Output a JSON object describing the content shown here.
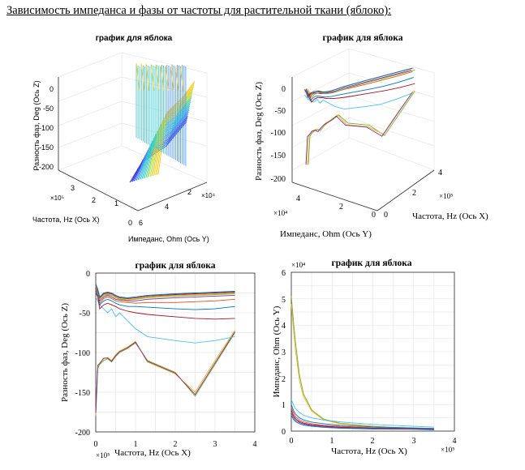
{
  "page": {
    "heading": "Зависимость импеданса и фазы от частоты для растительной ткани (яблоко):"
  },
  "colors": {
    "axis": "#262626",
    "grid": "#e6e6e6"
  },
  "chart_data": [
    {
      "id": "surface3d",
      "type": "surface",
      "title": "график для яблока",
      "xlabel": "Частота, Hz (Ось X)",
      "ylabel": "Импеданс, Ohm (Ось Y)",
      "zlabel": "Разность фаз, Deg (Ось Z)",
      "x_multiplier": "×10⁵",
      "y_multiplier": "×10⁴",
      "x_ticks": [
        "0",
        "1",
        "2",
        "3"
      ],
      "y_ticks": [
        "2",
        "4",
        "6"
      ],
      "z_ticks": [
        "0",
        "-50",
        "-100",
        "-150",
        "-200"
      ],
      "colormap": [
        "#3b3bd9",
        "#3f8ff0",
        "#33c6d6",
        "#56d69b",
        "#c9d636",
        "#f5cf2a"
      ]
    },
    {
      "id": "lines3d",
      "type": "line",
      "title": "график для яблока",
      "xlabel": "Частота, Hz (Ось X)",
      "ylabel": "Импеданс, Ohm (Ось Y)",
      "zlabel": "Разность фаз, Deg (Ось Z)",
      "x_multiplier": "×10⁵",
      "y_multiplier": "×10⁴",
      "x_ticks": [
        "0",
        "2",
        "4"
      ],
      "y_ticks": [
        "4",
        "2",
        "0"
      ],
      "z_ticks": [
        "0",
        "-50",
        "-100",
        "-150",
        "-200"
      ]
    },
    {
      "id": "phase",
      "type": "line",
      "title": "график для яблока",
      "xlabel": "Частота, Hz (Ось X)",
      "ylabel": "Разность фаз, Deg (Ось Z)",
      "x_multiplier": "×10⁵",
      "xlim": [
        0,
        4
      ],
      "ylim": [
        -200,
        0
      ],
      "x_ticks": [
        "0",
        "1",
        "2",
        "3",
        "4"
      ],
      "y_ticks": [
        "0",
        "-50",
        "-100",
        "-150",
        "-200"
      ],
      "x": [
        0,
        0.05,
        0.1,
        0.2,
        0.3,
        0.4,
        0.5,
        0.6,
        0.8,
        1.0,
        1.3,
        2.0,
        2.5,
        3.0,
        3.5
      ],
      "series": [
        {
          "name": "s1",
          "color": "#77ac30",
          "values": [
            -180,
            -120,
            -115,
            -110,
            -108,
            -112,
            -105,
            -100,
            -95,
            -88,
            -110,
            -125,
            -155,
            -115,
            -75
          ]
        },
        {
          "name": "s2",
          "color": "#edb120",
          "values": [
            -178,
            -118,
            -113,
            -108,
            -106,
            -110,
            -103,
            -98,
            -93,
            -86,
            -112,
            -127,
            -150,
            -110,
            -72
          ]
        },
        {
          "name": "s3",
          "color": "#7e2f8e",
          "values": [
            -176,
            -116,
            -114,
            -107,
            -107,
            -111,
            -104,
            -99,
            -94,
            -87,
            -111,
            -126,
            -153,
            -113,
            -74
          ]
        },
        {
          "name": "s4",
          "color": "#4dbeee",
          "values": [
            -30,
            -35,
            -40,
            -45,
            -50,
            -45,
            -55,
            -50,
            -60,
            -70,
            -80,
            -85,
            -88,
            -85,
            -80
          ]
        },
        {
          "name": "s5",
          "color": "#a2142f",
          "values": [
            -25,
            -30,
            -45,
            -40,
            -38,
            -40,
            -42,
            -45,
            -48,
            -50,
            -52,
            -55,
            -57,
            -58,
            -57
          ]
        },
        {
          "name": "s6",
          "color": "#0072bd",
          "values": [
            -22,
            -28,
            -40,
            -35,
            -33,
            -35,
            -38,
            -40,
            -42,
            -42,
            -43,
            -45,
            -46,
            -45,
            -42
          ]
        },
        {
          "name": "s7",
          "color": "#d95319",
          "values": [
            -20,
            -25,
            -38,
            -32,
            -30,
            -32,
            -35,
            -36,
            -37,
            -38,
            -37,
            -37,
            -36,
            -35,
            -33
          ]
        },
        {
          "name": "s8",
          "color": "#7e2f8e",
          "values": [
            -18,
            -24,
            -35,
            -30,
            -28,
            -30,
            -33,
            -34,
            -35,
            -35,
            -33,
            -31,
            -30,
            -29,
            -28
          ]
        },
        {
          "name": "s9",
          "color": "#77ac30",
          "values": [
            -17,
            -23,
            -33,
            -28,
            -27,
            -28,
            -31,
            -33,
            -34,
            -33,
            -31,
            -29,
            -28,
            -27,
            -26
          ]
        },
        {
          "name": "s10",
          "color": "#edb120",
          "values": [
            -16,
            -22,
            -32,
            -27,
            -26,
            -27,
            -30,
            -32,
            -33,
            -32,
            -30,
            -28,
            -27,
            -26,
            -25
          ]
        },
        {
          "name": "s11",
          "color": "#a2142f",
          "values": [
            -15,
            -21,
            -31,
            -26,
            -25,
            -26,
            -29,
            -31,
            -32,
            -31,
            -29,
            -27,
            -26,
            -25,
            -24
          ]
        },
        {
          "name": "s12",
          "color": "#0072bd",
          "values": [
            -14,
            -20,
            -30,
            -25,
            -24,
            -25,
            -28,
            -30,
            -31,
            -30,
            -28,
            -26,
            -25,
            -24,
            -23
          ]
        }
      ]
    },
    {
      "id": "impedance",
      "type": "line",
      "title": "график для яблока",
      "xlabel": "Частота, Hz (Ось X)",
      "ylabel": "Импеданс, Ohm (Ось Y)",
      "x_multiplier": "×10⁵",
      "y_multiplier": "×10⁴",
      "xlim": [
        0,
        4
      ],
      "ylim": [
        0,
        6
      ],
      "x_ticks": [
        "0",
        "1",
        "2",
        "3",
        "4"
      ],
      "y_ticks": [
        "0",
        "1",
        "2",
        "3",
        "4",
        "5",
        "6"
      ],
      "x": [
        0,
        0.05,
        0.1,
        0.2,
        0.3,
        0.5,
        0.8,
        1.2,
        2.0,
        3.0,
        3.5
      ],
      "series": [
        {
          "name": "s1",
          "color": "#77ac30",
          "values": [
            5.1,
            4.2,
            3.4,
            2.1,
            1.4,
            0.8,
            0.45,
            0.3,
            0.18,
            0.1,
            0.08
          ]
        },
        {
          "name": "s2",
          "color": "#edb120",
          "values": [
            4.8,
            3.9,
            3.1,
            1.9,
            1.3,
            0.75,
            0.42,
            0.28,
            0.17,
            0.1,
            0.08
          ]
        },
        {
          "name": "s3",
          "color": "#4dbeee",
          "values": [
            1.2,
            1.0,
            0.85,
            0.7,
            0.6,
            0.5,
            0.42,
            0.35,
            0.25,
            0.18,
            0.15
          ]
        },
        {
          "name": "s4",
          "color": "#0072bd",
          "values": [
            1.0,
            0.8,
            0.65,
            0.5,
            0.42,
            0.34,
            0.28,
            0.22,
            0.16,
            0.12,
            0.1
          ]
        },
        {
          "name": "s5",
          "color": "#d95319",
          "values": [
            0.9,
            0.7,
            0.55,
            0.42,
            0.35,
            0.28,
            0.22,
            0.18,
            0.13,
            0.1,
            0.08
          ]
        },
        {
          "name": "s6",
          "color": "#a2142f",
          "values": [
            0.8,
            0.6,
            0.48,
            0.36,
            0.3,
            0.24,
            0.19,
            0.15,
            0.11,
            0.09,
            0.07
          ]
        },
        {
          "name": "s7",
          "color": "#7e2f8e",
          "values": [
            0.7,
            0.52,
            0.42,
            0.32,
            0.27,
            0.21,
            0.17,
            0.13,
            0.1,
            0.08,
            0.06
          ]
        },
        {
          "name": "s8",
          "color": "#0072bd",
          "values": [
            0.6,
            0.45,
            0.36,
            0.28,
            0.23,
            0.18,
            0.14,
            0.11,
            0.08,
            0.07,
            0.05
          ]
        }
      ]
    }
  ]
}
